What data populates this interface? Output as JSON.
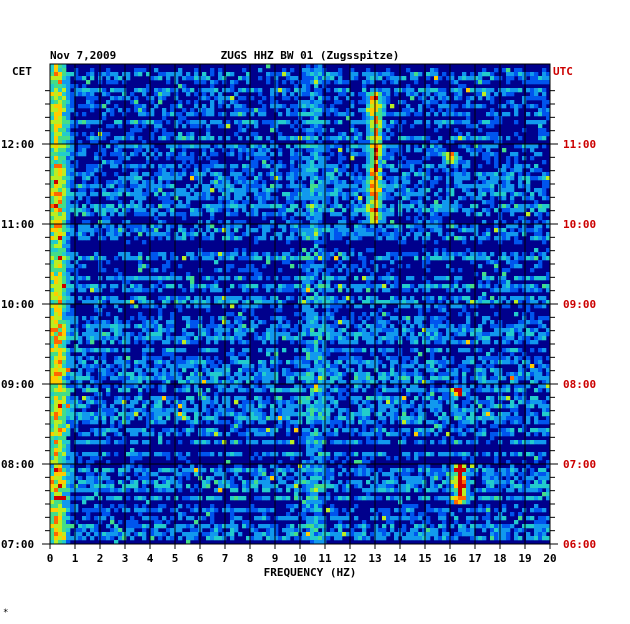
{
  "chart_data": {
    "type": "heatmap",
    "title": "ZUGS HHZ BW 01 (Zugsspitze)",
    "date": "Nov 7,2009",
    "xlabel": "FREQUENCY (HZ)",
    "left_axis_label": "CET",
    "right_axis_label": "UTC",
    "xlim": [
      0,
      20
    ],
    "x_ticks": [
      "0",
      "1",
      "2",
      "3",
      "4",
      "5",
      "6",
      "7",
      "8",
      "9",
      "10",
      "11",
      "12",
      "13",
      "14",
      "15",
      "16",
      "17",
      "18",
      "19",
      "20"
    ],
    "cet_ticks": [
      "12:00",
      "11:00",
      "10:00",
      "09:00",
      "08:00",
      "07:00"
    ],
    "utc_ticks": [
      "11:00",
      "10:00",
      "09:00",
      "08:00",
      "07:00",
      "06:00"
    ],
    "time_range_cet": [
      "07:00",
      "12:45"
    ],
    "colormap": [
      "#00008c",
      "#0022cc",
      "#0055ee",
      "#1199ee",
      "#22cccc",
      "#44dd88",
      "#bbee22",
      "#ffcc00",
      "#ff6600",
      "#cc0000"
    ],
    "utc_color": "#cc0000",
    "background_color": "#00008c",
    "hot_spots": [
      {
        "freq": 0.3,
        "time": "continuous",
        "intensity": 0.9
      },
      {
        "freq": 10.6,
        "time": "continuous",
        "intensity": 0.6
      },
      {
        "freq": 13.0,
        "time": "11:00-12:40",
        "intensity": 0.8
      },
      {
        "freq": 16.4,
        "time": "07:30-08:00",
        "intensity": 1.0
      },
      {
        "freq": 16.3,
        "time": "08:50",
        "intensity": 0.9
      },
      {
        "freq": 16.0,
        "time": "11:45",
        "intensity": 0.7
      }
    ],
    "footnote": "*"
  }
}
